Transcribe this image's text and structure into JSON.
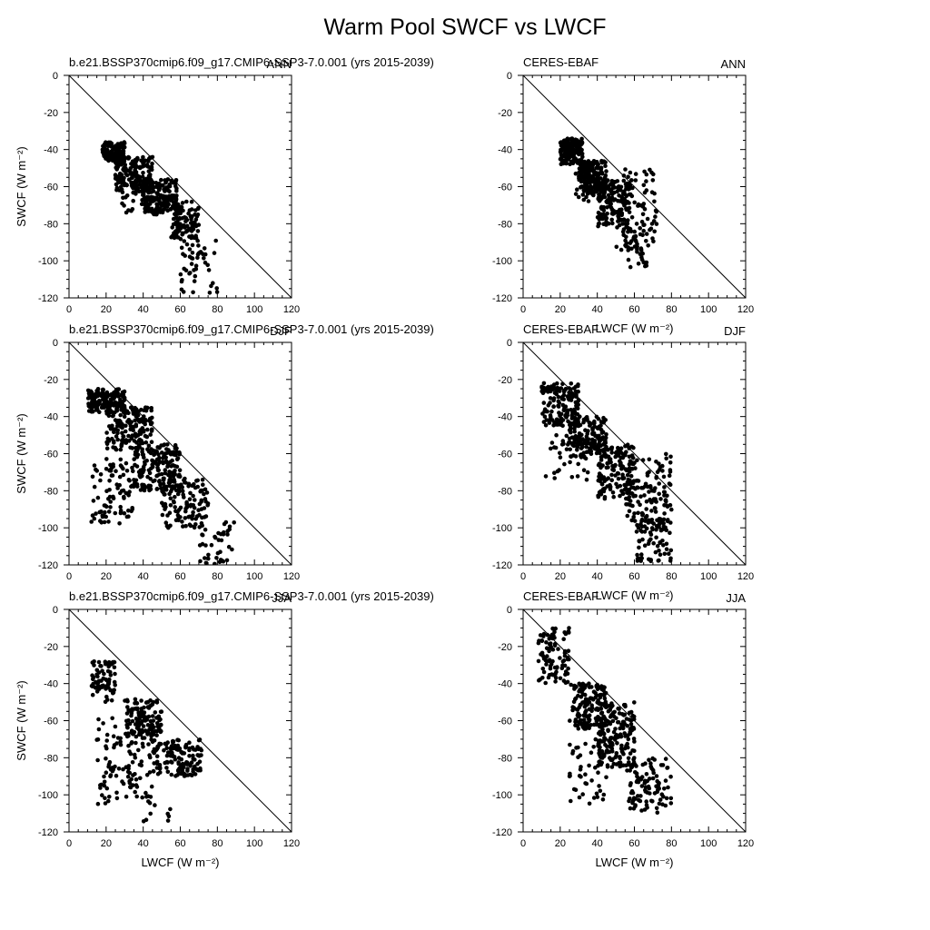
{
  "figure_title": "Warm Pool SWCF vs LWCF",
  "chart_data": [
    {
      "type": "scatter",
      "left_label": "b.e21.BSSP370cmip6.f09_g17.CMIP6-SSP3-7.0.001 (yrs 2015-2039)",
      "right_label": "ANN",
      "xlabel": "",
      "ylabel": "SWCF (W m⁻²)",
      "xlim": [
        0,
        120
      ],
      "ylim": [
        -120,
        0
      ],
      "xticks": [
        0,
        20,
        40,
        60,
        80,
        100,
        120
      ],
      "yticks": [
        0,
        -20,
        -40,
        -60,
        -80,
        -100,
        -120
      ],
      "reference_line": [
        [
          0,
          0
        ],
        [
          120,
          -120
        ]
      ],
      "point_cloud": [
        {
          "x": [
            18,
            30
          ],
          "y": [
            -46,
            -36
          ],
          "n": 140
        },
        {
          "x": [
            25,
            45
          ],
          "y": [
            -62,
            -44
          ],
          "n": 170
        },
        {
          "x": [
            40,
            58
          ],
          "y": [
            -75,
            -56
          ],
          "n": 160
        },
        {
          "x": [
            55,
            70
          ],
          "y": [
            -88,
            -68
          ],
          "n": 100
        },
        {
          "x": [
            60,
            80
          ],
          "y": [
            -118,
            -86
          ],
          "n": 50
        },
        {
          "x": [
            28,
            50
          ],
          "y": [
            -74,
            -58
          ],
          "n": 35
        }
      ]
    },
    {
      "type": "scatter",
      "left_label": "CERES-EBAF",
      "right_label": "ANN",
      "xlabel": "LWCF (W m⁻²)",
      "ylabel": "",
      "xlim": [
        0,
        120
      ],
      "ylim": [
        -120,
        0
      ],
      "xticks": [
        0,
        20,
        40,
        60,
        80,
        100,
        120
      ],
      "yticks": [
        0,
        -20,
        -40,
        -60,
        -80,
        -100,
        -120
      ],
      "reference_line": [
        [
          0,
          0
        ],
        [
          120,
          -120
        ]
      ],
      "point_cloud": [
        {
          "x": [
            20,
            32
          ],
          "y": [
            -48,
            -34
          ],
          "n": 140
        },
        {
          "x": [
            30,
            45
          ],
          "y": [
            -64,
            -46
          ],
          "n": 170
        },
        {
          "x": [
            40,
            58
          ],
          "y": [
            -82,
            -56
          ],
          "n": 160
        },
        {
          "x": [
            50,
            72
          ],
          "y": [
            -95,
            -50
          ],
          "n": 90
        },
        {
          "x": [
            55,
            68
          ],
          "y": [
            -104,
            -85
          ],
          "n": 25
        },
        {
          "x": [
            28,
            40
          ],
          "y": [
            -68,
            -52
          ],
          "n": 30
        }
      ]
    },
    {
      "type": "scatter",
      "left_label": "b.e21.BSSP370cmip6.f09_g17.CMIP6-SSP3-7.0.001 (yrs 2015-2039)",
      "right_label": "DJF",
      "xlabel": "",
      "ylabel": "SWCF (W m⁻²)",
      "xlim": [
        0,
        120
      ],
      "ylim": [
        -120,
        0
      ],
      "xticks": [
        0,
        20,
        40,
        60,
        80,
        100,
        120
      ],
      "yticks": [
        0,
        -20,
        -40,
        -60,
        -80,
        -100,
        -120
      ],
      "reference_line": [
        [
          0,
          0
        ],
        [
          120,
          -120
        ]
      ],
      "point_cloud": [
        {
          "x": [
            10,
            30
          ],
          "y": [
            -38,
            -25
          ],
          "n": 150
        },
        {
          "x": [
            20,
            45
          ],
          "y": [
            -58,
            -35
          ],
          "n": 170
        },
        {
          "x": [
            35,
            60
          ],
          "y": [
            -80,
            -55
          ],
          "n": 170
        },
        {
          "x": [
            50,
            75
          ],
          "y": [
            -100,
            -72
          ],
          "n": 120
        },
        {
          "x": [
            70,
            90
          ],
          "y": [
            -120,
            -95
          ],
          "n": 40
        },
        {
          "x": [
            12,
            35
          ],
          "y": [
            -98,
            -62
          ],
          "n": 90
        }
      ]
    },
    {
      "type": "scatter",
      "left_label": "CERES-EBAF",
      "right_label": "DJF",
      "xlabel": "LWCF (W m⁻²)",
      "ylabel": "",
      "xlim": [
        0,
        120
      ],
      "ylim": [
        -120,
        0
      ],
      "xticks": [
        0,
        20,
        40,
        60,
        80,
        100,
        120
      ],
      "yticks": [
        0,
        -20,
        -40,
        -60,
        -80,
        -100,
        -120
      ],
      "reference_line": [
        [
          0,
          0
        ],
        [
          120,
          -120
        ]
      ],
      "point_cloud": [
        {
          "x": [
            10,
            30
          ],
          "y": [
            -45,
            -22
          ],
          "n": 150
        },
        {
          "x": [
            25,
            45
          ],
          "y": [
            -62,
            -40
          ],
          "n": 150
        },
        {
          "x": [
            40,
            60
          ],
          "y": [
            -85,
            -55
          ],
          "n": 150
        },
        {
          "x": [
            55,
            80
          ],
          "y": [
            -100,
            -60
          ],
          "n": 130
        },
        {
          "x": [
            60,
            80
          ],
          "y": [
            -118,
            -95
          ],
          "n": 60
        },
        {
          "x": [
            12,
            35
          ],
          "y": [
            -75,
            -50
          ],
          "n": 40
        }
      ]
    },
    {
      "type": "scatter",
      "left_label": "b.e21.BSSP370cmip6.f09_g17.CMIP6-SSP3-7.0.001 (yrs 2015-2039)",
      "right_label": "JJA",
      "xlabel": "LWCF (W m⁻²)",
      "ylabel": "SWCF (W m⁻²)",
      "xlim": [
        0,
        120
      ],
      "ylim": [
        -120,
        0
      ],
      "xticks": [
        0,
        20,
        40,
        60,
        80,
        100,
        120
      ],
      "yticks": [
        0,
        -20,
        -40,
        -60,
        -80,
        -100,
        -120
      ],
      "reference_line": [
        [
          0,
          0
        ],
        [
          120,
          -120
        ]
      ],
      "point_cloud": [
        {
          "x": [
            12,
            25
          ],
          "y": [
            -50,
            -28
          ],
          "n": 70
        },
        {
          "x": [
            30,
            50
          ],
          "y": [
            -68,
            -48
          ],
          "n": 110
        },
        {
          "x": [
            45,
            72
          ],
          "y": [
            -90,
            -70
          ],
          "n": 140
        },
        {
          "x": [
            15,
            45
          ],
          "y": [
            -105,
            -58
          ],
          "n": 120
        },
        {
          "x": [
            40,
            55
          ],
          "y": [
            -115,
            -95
          ],
          "n": 10
        }
      ]
    },
    {
      "type": "scatter",
      "left_label": "CERES-EBAF",
      "right_label": "JJA",
      "xlabel": "LWCF (W m⁻²)",
      "ylabel": "",
      "xlim": [
        0,
        120
      ],
      "ylim": [
        -120,
        0
      ],
      "xticks": [
        0,
        20,
        40,
        60,
        80,
        100,
        120
      ],
      "yticks": [
        0,
        -20,
        -40,
        -60,
        -80,
        -100,
        -120
      ],
      "reference_line": [
        [
          0,
          0
        ],
        [
          120,
          -120
        ]
      ],
      "point_cloud": [
        {
          "x": [
            8,
            25
          ],
          "y": [
            -40,
            -10
          ],
          "n": 90
        },
        {
          "x": [
            25,
            45
          ],
          "y": [
            -65,
            -40
          ],
          "n": 140
        },
        {
          "x": [
            40,
            60
          ],
          "y": [
            -85,
            -50
          ],
          "n": 180
        },
        {
          "x": [
            55,
            80
          ],
          "y": [
            -110,
            -80
          ],
          "n": 100
        },
        {
          "x": [
            25,
            45
          ],
          "y": [
            -105,
            -70
          ],
          "n": 50
        }
      ]
    }
  ]
}
